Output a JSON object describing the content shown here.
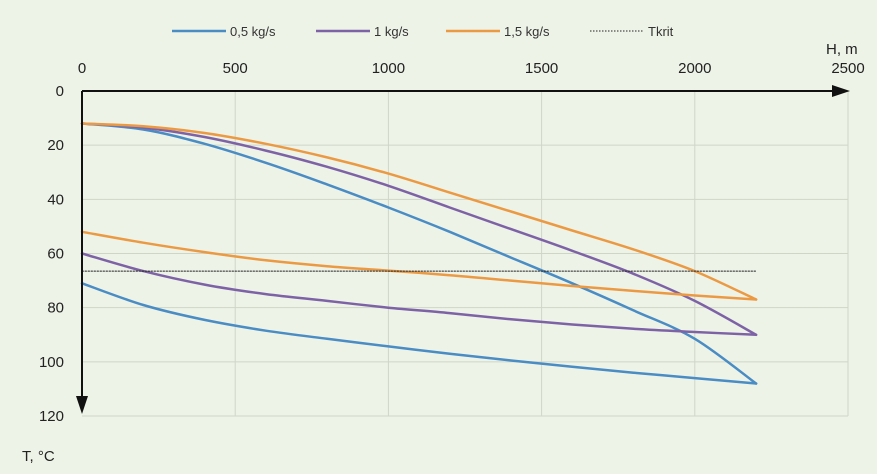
{
  "chart_data": {
    "type": "line",
    "x_axis": {
      "label": "H, m",
      "range": [
        0,
        2500
      ],
      "ticks": [
        0,
        500,
        1000,
        1500,
        2000,
        2500
      ],
      "tick_labels": [
        "0",
        "500",
        "1000",
        "1500",
        "2000",
        "2500"
      ],
      "position": "top",
      "grid": true
    },
    "y_axis": {
      "label": "T, °C",
      "range": [
        0,
        120
      ],
      "ticks": [
        0,
        20,
        40,
        60,
        80,
        100,
        120
      ],
      "tick_labels": [
        "0",
        "20",
        "40",
        "60",
        "80",
        "100",
        "120"
      ],
      "inverted": true,
      "grid": true
    },
    "legend": {
      "placement": "top",
      "entries": [
        {
          "key": "s05",
          "label": "0,5 kg/s",
          "color": "#4a8cc4",
          "style": "solid"
        },
        {
          "key": "s1",
          "label": "1 kg/s",
          "color": "#7e62a6",
          "style": "solid"
        },
        {
          "key": "s15",
          "label": "1,5 kg/s",
          "color": "#eb9a43",
          "style": "solid"
        },
        {
          "key": "tkrit",
          "label": "Tkrit",
          "color": "#222222",
          "style": "dotted"
        }
      ]
    },
    "series": [
      {
        "key": "s05",
        "name": "0,5 kg/s (upper curve)",
        "color": "#4a8cc4",
        "x": [
          0,
          200,
          400,
          600,
          800,
          1000,
          1200,
          1400,
          1600,
          1800,
          2000,
          2200
        ],
        "y": [
          12,
          14.2,
          19.5,
          26.5,
          34.5,
          43,
          52,
          61.5,
          71,
          81,
          91.5,
          108
        ]
      },
      {
        "key": "s05",
        "name": "0,5 kg/s (lower curve)",
        "color": "#4a8cc4",
        "x": [
          0,
          200,
          400,
          600,
          800,
          1000,
          1200,
          1400,
          1600,
          1800,
          2000,
          2200
        ],
        "y": [
          71,
          79,
          84.5,
          88.5,
          91.5,
          94.3,
          97,
          99.5,
          101.8,
          104,
          106,
          108
        ]
      },
      {
        "key": "s1",
        "name": "1 kg/s (upper curve)",
        "color": "#7e62a6",
        "x": [
          0,
          200,
          400,
          600,
          800,
          1000,
          1200,
          1400,
          1600,
          1800,
          2000,
          2200
        ],
        "y": [
          12,
          13.5,
          17,
          22,
          28,
          35,
          43,
          51,
          59,
          67.5,
          77.5,
          90
        ]
      },
      {
        "key": "s1",
        "name": "1 kg/s (lower curve)",
        "color": "#7e62a6",
        "x": [
          0,
          200,
          400,
          600,
          800,
          1000,
          1200,
          1400,
          1600,
          1800,
          2000,
          2200
        ],
        "y": [
          60,
          66.5,
          71.5,
          75,
          77.5,
          80,
          82,
          84.3,
          86.2,
          87.8,
          89,
          90
        ]
      },
      {
        "key": "s15",
        "name": "1,5 kg/s (upper curve)",
        "color": "#eb9a43",
        "x": [
          0,
          200,
          400,
          600,
          800,
          1000,
          1200,
          1400,
          1600,
          1800,
          2000,
          2200
        ],
        "y": [
          12,
          13,
          15.5,
          19.5,
          24.5,
          30.5,
          37.5,
          44.5,
          51.5,
          58.5,
          66.5,
          77
        ]
      },
      {
        "key": "s15",
        "name": "1,5 kg/s (lower curve)",
        "color": "#eb9a43",
        "x": [
          0,
          200,
          400,
          600,
          800,
          1000,
          1200,
          1400,
          1600,
          1800,
          2000,
          2200
        ],
        "y": [
          52,
          56,
          59.5,
          62.5,
          64.7,
          66.3,
          68,
          70,
          72,
          73.8,
          75.5,
          77
        ]
      },
      {
        "key": "tkrit",
        "name": "Tkrit",
        "color": "#222222",
        "style": "dotted",
        "x": [
          0,
          2200
        ],
        "y": [
          66.5,
          66.5
        ]
      }
    ]
  }
}
